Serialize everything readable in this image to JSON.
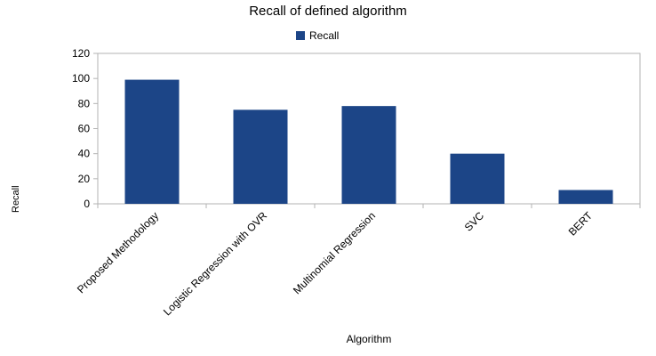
{
  "chart_data": {
    "type": "bar",
    "title": "Recall of defined algorithm",
    "xlabel": "Algorithm",
    "ylabel": "Recall",
    "categories": [
      "Proposed Methodology",
      "Logistic Regression with OVR",
      "Multinomial Regression",
      "SVC",
      "BERT"
    ],
    "series": [
      {
        "name": "Recall",
        "values": [
          99,
          75,
          78,
          40,
          11
        ],
        "color": "#1c4587"
      }
    ],
    "ylim": [
      0,
      120
    ],
    "yticks": [
      0,
      20,
      40,
      60,
      80,
      100,
      120
    ],
    "grid": false,
    "legend": "top-center"
  }
}
